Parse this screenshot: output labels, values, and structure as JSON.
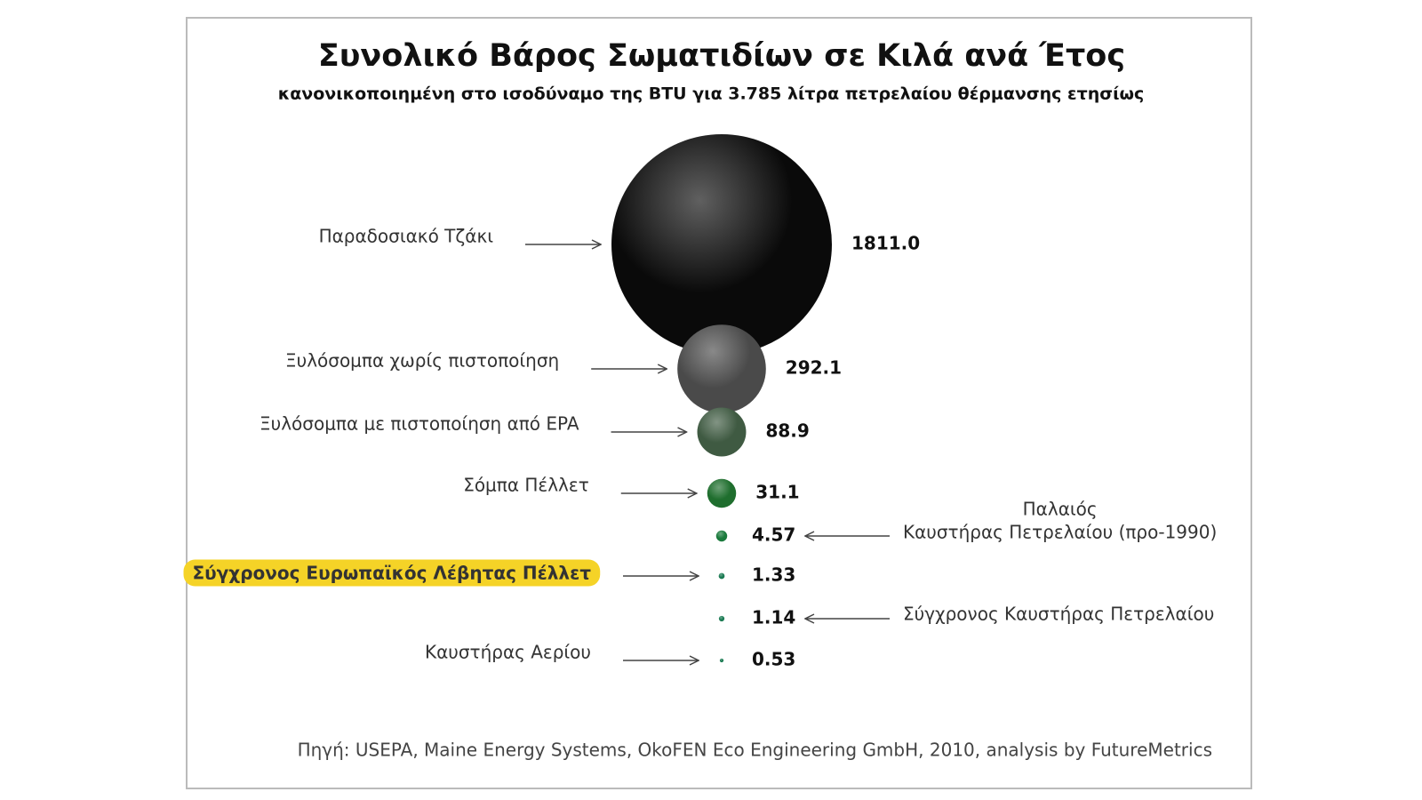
{
  "chart_data": {
    "type": "bubble",
    "title": "Συνολικό Βάρος Σωματιδίων σε Κιλά ανά Έτος",
    "subtitle": "κανονικοποιημένη στο ισοδύναμο της BTU για 3.785 λίτρα πετρελαίου θέρμανσης ετησίως",
    "categories": [
      "Παραδοσιακό Τζάκι",
      "Ξυλόσομπα  χωρίς πιστοποίηση",
      "Ξυλόσομπα με πιστοποίηση από EPA",
      "Σόμπα Πέλλετ",
      [
        "Παλαιός",
        "Καυστήρας Πετρελαίου (προ-1990)"
      ],
      "Σύγχρονος Ευρωπαϊκός Λέβητας Πέλλετ",
      "Σύγχρονος Καυστήρας Πετρελαίου",
      "Καυστήρας Αερίου"
    ],
    "values": [
      1811.0,
      292.1,
      88.9,
      31.1,
      4.57,
      1.33,
      1.14,
      0.53
    ],
    "value_labels": [
      "1811.0",
      "292.1",
      "88.9",
      "31.1",
      "4.57",
      "1.33",
      "1.14",
      "0.53"
    ],
    "colors": [
      "#0a0a0a",
      "#4a4a4a",
      "#3f5a42",
      "#1f6e2e",
      "#1a7a3c",
      "#1a7a52",
      "#1a7a52",
      "#1a7a52"
    ],
    "label_sides": [
      "left",
      "left",
      "left",
      "left",
      "right",
      "left",
      "right",
      "left"
    ],
    "highlight": 5,
    "source": "Πηγή: USEPA, Maine Energy Systems, OkoFEN Eco Engineering GmbH, 2010, analysis by FutureMetrics"
  }
}
